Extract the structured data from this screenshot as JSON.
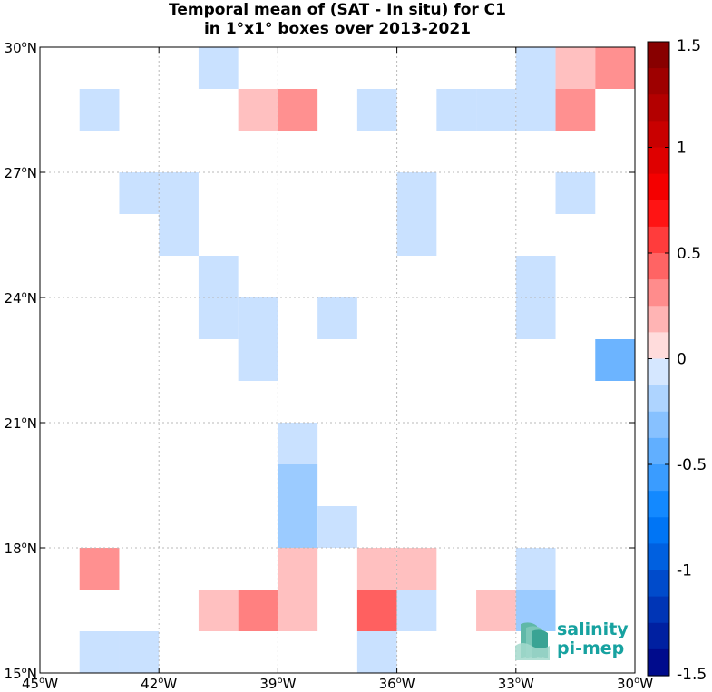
{
  "chart_data": {
    "type": "heatmap",
    "title": "Temporal mean of (SAT - In situ) for C1",
    "subtitle": "in 1°x1° boxes over 2013-2021",
    "xlim": [
      -45,
      -30
    ],
    "ylim": [
      15,
      30
    ],
    "x_ticks": [
      {
        "value": -45,
        "label": "45°W"
      },
      {
        "value": -42,
        "label": "42°W"
      },
      {
        "value": -39,
        "label": "39°W"
      },
      {
        "value": -36,
        "label": "36°W"
      },
      {
        "value": -33,
        "label": "33°W"
      },
      {
        "value": -30,
        "label": "30°W"
      }
    ],
    "y_ticks": [
      {
        "value": 15,
        "label": "15°N"
      },
      {
        "value": 18,
        "label": "18°N"
      },
      {
        "value": 21,
        "label": "21°N"
      },
      {
        "value": 24,
        "label": "24°N"
      },
      {
        "value": 27,
        "label": "27°N"
      },
      {
        "value": 30,
        "label": "30°N"
      }
    ],
    "grid": true,
    "colorbar": {
      "min": -1.5,
      "max": 1.5,
      "levels": 24,
      "ticks": [
        {
          "value": 1.5,
          "label": "1.5"
        },
        {
          "value": 1,
          "label": "1"
        },
        {
          "value": 0.5,
          "label": "0.5"
        },
        {
          "value": 0,
          "label": "0"
        },
        {
          "value": -0.5,
          "label": "-0.5"
        },
        {
          "value": -1,
          "label": "-1"
        },
        {
          "value": -1.5,
          "label": "-1.5"
        }
      ]
    },
    "cells": [
      {
        "lon": -41,
        "lat": 29,
        "value": -0.1
      },
      {
        "lon": -33,
        "lat": 29,
        "value": -0.1
      },
      {
        "lon": -32,
        "lat": 29,
        "value": 0.15
      },
      {
        "lon": -31,
        "lat": 29,
        "value": 0.3
      },
      {
        "lon": -44,
        "lat": 28,
        "value": -0.1
      },
      {
        "lon": -40,
        "lat": 28,
        "value": 0.15
      },
      {
        "lon": -39,
        "lat": 28,
        "value": 0.3
      },
      {
        "lon": -37,
        "lat": 28,
        "value": -0.1
      },
      {
        "lon": -35,
        "lat": 28,
        "value": -0.1
      },
      {
        "lon": -34,
        "lat": 28,
        "value": -0.1
      },
      {
        "lon": -33,
        "lat": 28,
        "value": -0.1
      },
      {
        "lon": -32,
        "lat": 28,
        "value": 0.3
      },
      {
        "lon": -43,
        "lat": 26,
        "value": -0.1
      },
      {
        "lon": -42,
        "lat": 26,
        "value": -0.1
      },
      {
        "lon": -36,
        "lat": 26,
        "value": -0.1
      },
      {
        "lon": -32,
        "lat": 26,
        "value": -0.1
      },
      {
        "lon": -42,
        "lat": 25,
        "value": -0.1
      },
      {
        "lon": -36,
        "lat": 25,
        "value": -0.1
      },
      {
        "lon": -41,
        "lat": 24,
        "value": -0.1
      },
      {
        "lon": -33,
        "lat": 24,
        "value": -0.1
      },
      {
        "lon": -41,
        "lat": 23,
        "value": -0.1
      },
      {
        "lon": -40,
        "lat": 23,
        "value": -0.1
      },
      {
        "lon": -38,
        "lat": 23,
        "value": -0.1
      },
      {
        "lon": -33,
        "lat": 23,
        "value": -0.1
      },
      {
        "lon": -40,
        "lat": 22,
        "value": -0.1
      },
      {
        "lon": -31,
        "lat": 22,
        "value": -0.4
      },
      {
        "lon": -39,
        "lat": 20,
        "value": -0.1
      },
      {
        "lon": -39,
        "lat": 19,
        "value": -0.25
      },
      {
        "lon": -39,
        "lat": 18,
        "value": -0.25
      },
      {
        "lon": -38,
        "lat": 18,
        "value": -0.1
      },
      {
        "lon": -44,
        "lat": 17,
        "value": 0.3
      },
      {
        "lon": -39,
        "lat": 17,
        "value": 0.15
      },
      {
        "lon": -37,
        "lat": 17,
        "value": 0.15
      },
      {
        "lon": -36,
        "lat": 17,
        "value": 0.15
      },
      {
        "lon": -33,
        "lat": 17,
        "value": -0.1
      },
      {
        "lon": -41,
        "lat": 16,
        "value": 0.15
      },
      {
        "lon": -40,
        "lat": 16,
        "value": 0.35
      },
      {
        "lon": -39,
        "lat": 16,
        "value": 0.15
      },
      {
        "lon": -37,
        "lat": 16,
        "value": 0.45
      },
      {
        "lon": -36,
        "lat": 16,
        "value": -0.1
      },
      {
        "lon": -34,
        "lat": 16,
        "value": 0.15
      },
      {
        "lon": -33,
        "lat": 16,
        "value": -0.25
      },
      {
        "lon": -44,
        "lat": 15,
        "value": -0.1
      },
      {
        "lon": -43,
        "lat": 15,
        "value": -0.1
      },
      {
        "lon": -37,
        "lat": 15,
        "value": -0.1
      }
    ]
  },
  "logo": {
    "line1": "salinity",
    "line2": "pi-mep",
    "color": "#17a2a0"
  }
}
